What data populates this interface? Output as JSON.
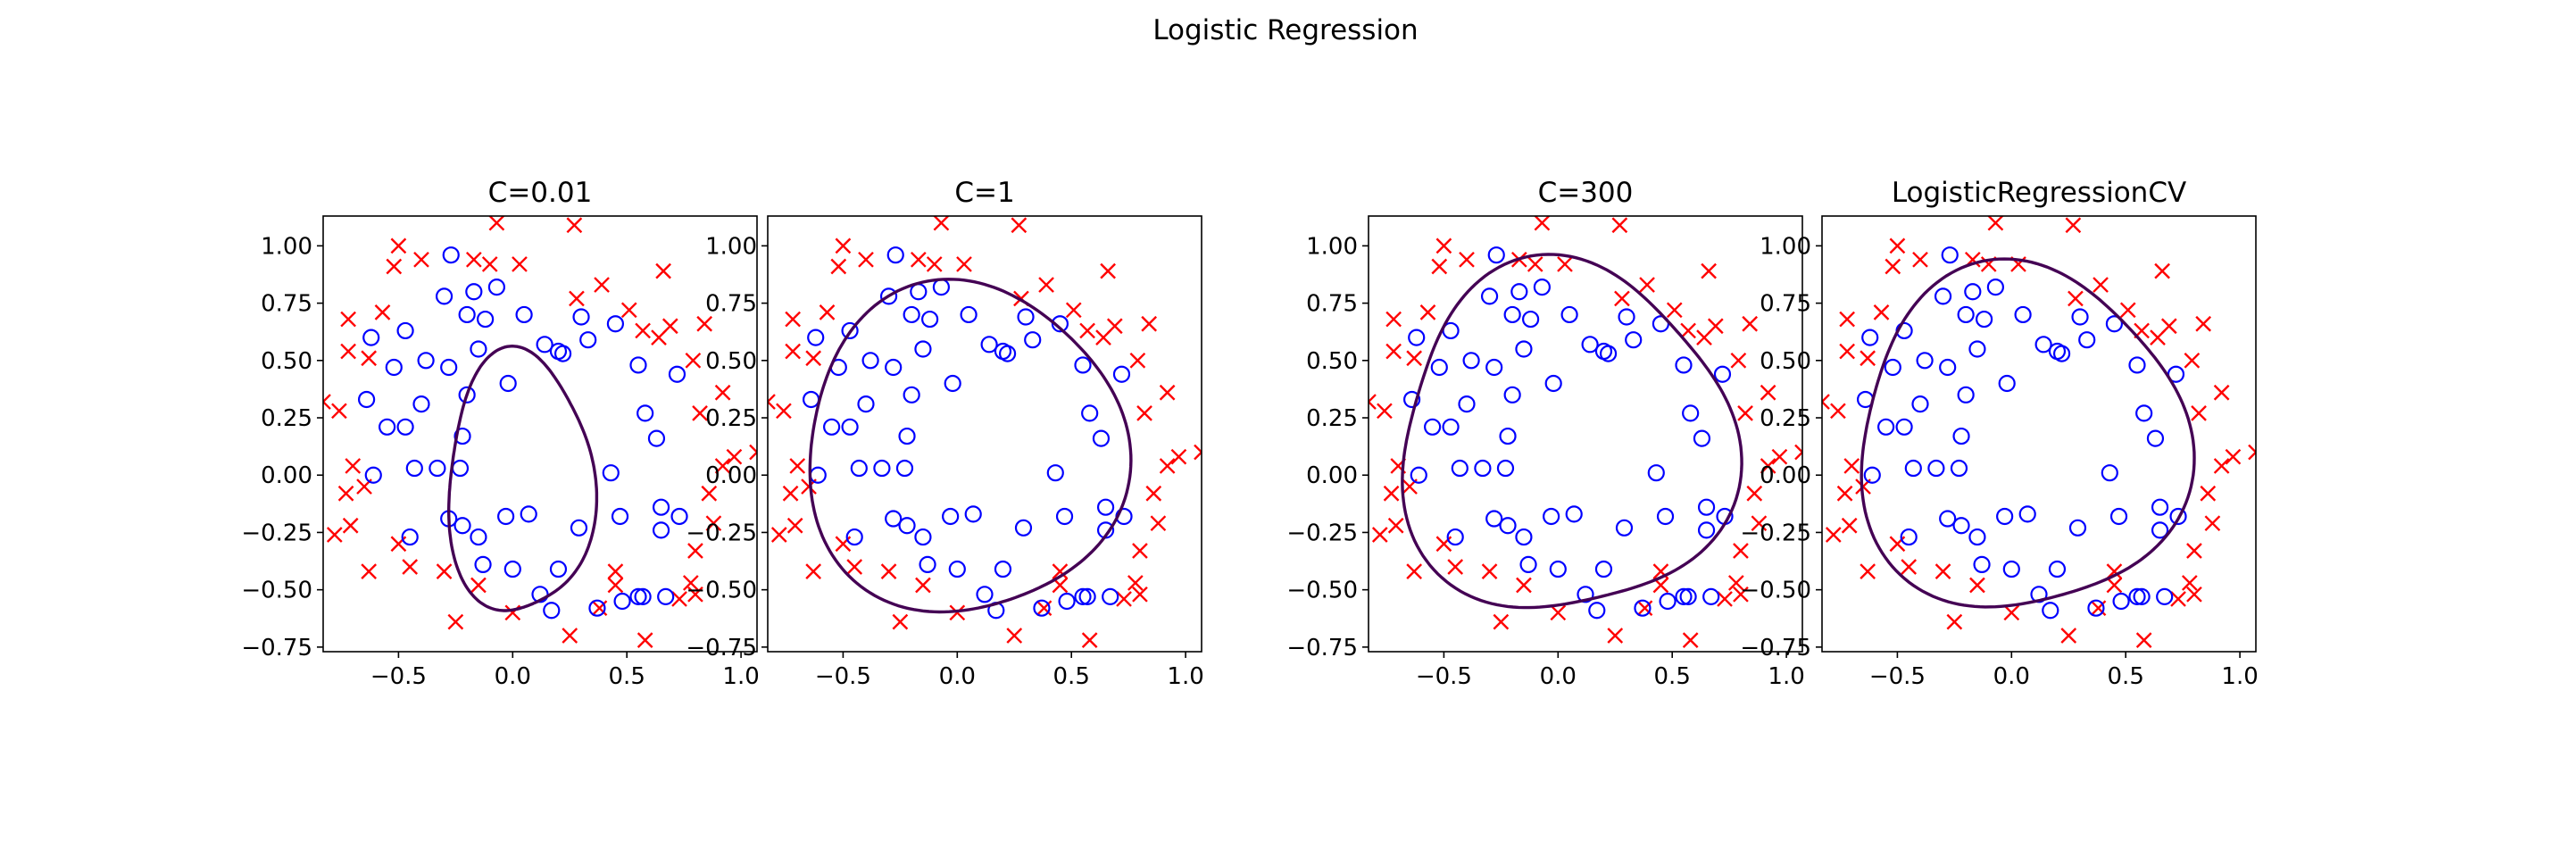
{
  "figure": {
    "suptitle": "Logistic Regression"
  },
  "chart_data": [
    {
      "type": "scatter",
      "title": "C=0.01",
      "xlim": [
        -0.83,
        1.07
      ],
      "ylim": [
        -0.77,
        1.13
      ],
      "xticks": [
        "−0.5",
        "0.0",
        "0.5",
        "1.0"
      ],
      "xtick_values": [
        -0.5,
        0.0,
        0.5,
        1.0
      ],
      "yticks": [
        "1.00",
        "0.75",
        "0.50",
        "0.25",
        "0.00",
        "−0.25",
        "−0.50",
        "−0.75"
      ],
      "ytick_values": [
        1.0,
        0.75,
        0.5,
        0.25,
        0.0,
        -0.25,
        -0.5,
        -0.75
      ],
      "boundary": {
        "cx": 0.03,
        "cy": -0.04,
        "rx": 0.32,
        "ry": 0.57,
        "amp": 0.07,
        "phase": 0.8
      }
    },
    {
      "type": "scatter",
      "title": "C=1",
      "xlim": [
        -0.83,
        1.07
      ],
      "ylim": [
        -0.77,
        1.13
      ],
      "xticks": [
        "−0.5",
        "0.0",
        "0.5",
        "1.0"
      ],
      "xtick_values": [
        -0.5,
        0.0,
        0.5,
        1.0
      ],
      "yticks": [
        "1.00",
        "0.75",
        "0.50",
        "0.25",
        "0.00",
        "−0.25",
        "−0.50",
        "−0.75"
      ],
      "ytick_values": [
        1.0,
        0.75,
        0.5,
        0.25,
        0.0,
        -0.25,
        -0.5,
        -0.75
      ],
      "boundary": {
        "cx": 0.03,
        "cy": 0.11,
        "rx": 0.7,
        "ry": 0.72,
        "amp": 0.05,
        "phase": 0.6
      }
    },
    {
      "type": "scatter",
      "title": "C=300",
      "xlim": [
        -0.83,
        1.07
      ],
      "ylim": [
        -0.77,
        1.13
      ],
      "xticks": [
        "−0.5",
        "0.0",
        "0.5",
        "1.0"
      ],
      "xtick_values": [
        -0.5,
        0.0,
        0.5,
        1.0
      ],
      "yticks": [
        "1.00",
        "0.75",
        "0.50",
        "0.25",
        "0.00",
        "−0.25",
        "−0.50",
        "−0.75"
      ],
      "ytick_values": [
        1.0,
        0.75,
        0.5,
        0.25,
        0.0,
        -0.25,
        -0.5,
        -0.75
      ],
      "boundary": {
        "cx": 0.03,
        "cy": 0.15,
        "rx": 0.73,
        "ry": 0.76,
        "amp": 0.08,
        "phase": 0.9
      }
    },
    {
      "type": "scatter",
      "title": "LogisticRegressionCV",
      "xlim": [
        -0.83,
        1.07
      ],
      "ylim": [
        -0.77,
        1.13
      ],
      "xticks": [
        "−0.5",
        "0.0",
        "0.5",
        "1.0"
      ],
      "xtick_values": [
        -0.5,
        0.0,
        0.5,
        1.0
      ],
      "yticks": [
        "1.00",
        "0.75",
        "0.50",
        "0.25",
        "0.00",
        "−0.25",
        "−0.50",
        "−0.75"
      ],
      "ytick_values": [
        1.0,
        0.75,
        0.5,
        0.25,
        0.0,
        -0.25,
        -0.5,
        -0.75
      ],
      "boundary": {
        "cx": 0.04,
        "cy": 0.15,
        "rx": 0.72,
        "ry": 0.75,
        "amp": 0.07,
        "phase": 0.8
      }
    }
  ],
  "shared_points": {
    "accepted": [
      [
        -0.27,
        0.96
      ],
      [
        -0.17,
        0.8
      ],
      [
        -0.07,
        0.82
      ],
      [
        -0.3,
        0.78
      ],
      [
        -0.2,
        0.7
      ],
      [
        -0.12,
        0.68
      ],
      [
        0.05,
        0.7
      ],
      [
        0.2,
        0.54
      ],
      [
        0.3,
        0.69
      ],
      [
        0.45,
        0.66
      ],
      [
        -0.47,
        0.63
      ],
      [
        -0.62,
        0.6
      ],
      [
        -0.15,
        0.55
      ],
      [
        -0.38,
        0.5
      ],
      [
        -0.52,
        0.47
      ],
      [
        -0.28,
        0.47
      ],
      [
        0.14,
        0.57
      ],
      [
        0.22,
        0.53
      ],
      [
        0.33,
        0.59
      ],
      [
        0.55,
        0.48
      ],
      [
        -0.64,
        0.33
      ],
      [
        -0.4,
        0.31
      ],
      [
        -0.2,
        0.35
      ],
      [
        -0.02,
        0.4
      ],
      [
        -0.55,
        0.21
      ],
      [
        -0.47,
        0.21
      ],
      [
        -0.22,
        0.17
      ],
      [
        0.58,
        0.27
      ],
      [
        0.63,
        0.16
      ],
      [
        -0.61,
        0.0
      ],
      [
        -0.43,
        0.03
      ],
      [
        -0.33,
        0.03
      ],
      [
        -0.23,
        0.03
      ],
      [
        0.43,
        0.01
      ],
      [
        -0.45,
        -0.27
      ],
      [
        -0.28,
        -0.19
      ],
      [
        -0.22,
        -0.22
      ],
      [
        -0.15,
        -0.27
      ],
      [
        -0.13,
        -0.39
      ],
      [
        0.0,
        -0.41
      ],
      [
        0.07,
        -0.17
      ],
      [
        -0.03,
        -0.18
      ],
      [
        0.12,
        -0.52
      ],
      [
        0.2,
        -0.41
      ],
      [
        0.17,
        -0.59
      ],
      [
        0.29,
        -0.23
      ],
      [
        0.37,
        -0.58
      ],
      [
        0.47,
        -0.18
      ],
      [
        0.48,
        -0.55
      ],
      [
        0.57,
        -0.53
      ],
      [
        0.65,
        -0.14
      ],
      [
        0.65,
        -0.24
      ],
      [
        0.73,
        -0.18
      ],
      [
        0.67,
        -0.53
      ],
      [
        0.72,
        0.44
      ],
      [
        0.55,
        -0.53
      ]
    ],
    "rejected": [
      [
        -0.07,
        1.1
      ],
      [
        0.27,
        1.09
      ],
      [
        -0.5,
        1.0
      ],
      [
        -0.52,
        0.91
      ],
      [
        -0.4,
        0.94
      ],
      [
        -0.17,
        0.94
      ],
      [
        -0.1,
        0.92
      ],
      [
        0.03,
        0.92
      ],
      [
        0.28,
        0.77
      ],
      [
        0.39,
        0.83
      ],
      [
        0.51,
        0.72
      ],
      [
        0.66,
        0.89
      ],
      [
        -0.72,
        0.68
      ],
      [
        -0.57,
        0.71
      ],
      [
        -0.72,
        0.54
      ],
      [
        -0.63,
        0.51
      ],
      [
        0.57,
        0.63
      ],
      [
        0.64,
        0.6
      ],
      [
        0.69,
        0.65
      ],
      [
        0.84,
        0.66
      ],
      [
        0.79,
        0.5
      ],
      [
        -0.83,
        0.32
      ],
      [
        -0.76,
        0.28
      ],
      [
        0.92,
        0.36
      ],
      [
        0.82,
        0.27
      ],
      [
        -0.7,
        0.04
      ],
      [
        -0.73,
        -0.08
      ],
      [
        -0.65,
        -0.05
      ],
      [
        -0.78,
        -0.26
      ],
      [
        -0.71,
        -0.22
      ],
      [
        -0.63,
        -0.42
      ],
      [
        -0.5,
        -0.3
      ],
      [
        -0.45,
        -0.4
      ],
      [
        -0.3,
        -0.42
      ],
      [
        -0.15,
        -0.48
      ],
      [
        0.0,
        -0.6
      ],
      [
        -0.25,
        -0.64
      ],
      [
        0.25,
        -0.7
      ],
      [
        0.38,
        -0.58
      ],
      [
        0.45,
        -0.42
      ],
      [
        0.45,
        -0.48
      ],
      [
        0.58,
        -0.72
      ],
      [
        0.86,
        -0.08
      ],
      [
        0.92,
        0.04
      ],
      [
        0.97,
        0.08
      ],
      [
        1.07,
        0.1
      ],
      [
        0.88,
        -0.21
      ],
      [
        0.8,
        -0.33
      ],
      [
        0.78,
        -0.47
      ],
      [
        0.73,
        -0.54
      ],
      [
        0.8,
        -0.52
      ]
    ]
  },
  "colors": {
    "accepted": "#0000ff",
    "rejected": "#ff0000",
    "boundary": "#440154",
    "axes": "#000000"
  }
}
